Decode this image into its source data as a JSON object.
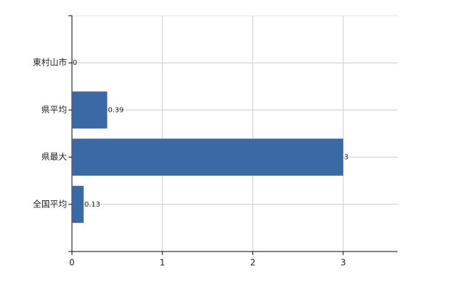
{
  "chart_data": {
    "type": "barh",
    "categories": [
      "東村山市",
      "県平均",
      "県最大",
      "全国平均"
    ],
    "values": [
      0,
      0.39,
      3,
      0.13
    ],
    "color": "#3a69a5",
    "xlim": [
      0,
      3.6
    ],
    "xticks": [
      0,
      1,
      2,
      3
    ],
    "grid": true
  }
}
